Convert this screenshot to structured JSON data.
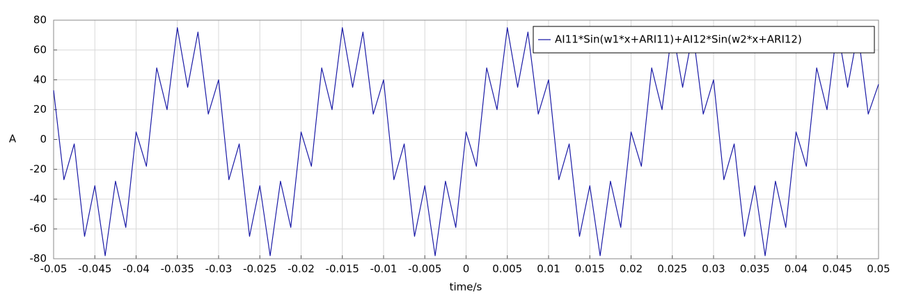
{
  "chart_data": {
    "type": "line",
    "xlabel": "time/s",
    "ylabel": "A",
    "x": [
      -0.05,
      -0.04875,
      -0.0475,
      -0.04625,
      -0.045,
      -0.04375,
      -0.0425,
      -0.04125,
      -0.04,
      -0.03875,
      -0.0375,
      -0.03625,
      -0.035,
      -0.03375,
      -0.0325,
      -0.03125,
      -0.03,
      -0.02875,
      -0.0275,
      -0.02625,
      -0.025,
      -0.02375,
      -0.0225,
      -0.02125,
      -0.02,
      -0.01875,
      -0.0175,
      -0.01625,
      -0.015,
      -0.01375,
      -0.0125,
      -0.01125,
      -0.01,
      -0.00875,
      -0.0075,
      -0.00625,
      -0.005,
      -0.00375,
      -0.0025,
      -0.00125,
      0,
      0.00125,
      0.0025,
      0.00375,
      0.005,
      0.00625,
      0.0075,
      0.00875,
      0.01,
      0.01125,
      0.0125,
      0.01375,
      0.015,
      0.01625,
      0.0175,
      0.01875,
      0.02,
      0.02125,
      0.0225,
      0.02375,
      0.025,
      0.02625,
      0.0275,
      0.02875,
      0.03,
      0.03125,
      0.0325,
      0.03375,
      0.035,
      0.03625,
      0.0375,
      0.03875,
      0.04,
      0.04125,
      0.0425,
      0.04375,
      0.045,
      0.04625,
      0.0475,
      0.04875,
      0.05
    ],
    "series": [
      {
        "name": "AI11*Sin(w1*x+ARI11)+AI12*Sin(w2*x+ARI12)",
        "color": "#1a1aa6",
        "values": [
          33,
          -27,
          -3,
          -65,
          -31,
          -78,
          -28,
          -59,
          5,
          -18,
          48,
          20,
          75,
          35,
          72,
          17,
          40,
          -27,
          -3,
          -65,
          -31,
          -78,
          -28,
          -59,
          5,
          -18,
          48,
          20,
          75,
          35,
          72,
          17,
          40,
          -27,
          -3,
          -65,
          -31,
          -78,
          -28,
          -59,
          5,
          -18,
          48,
          20,
          75,
          35,
          72,
          17,
          40,
          -27,
          -3,
          -65,
          -31,
          -78,
          -28,
          -59,
          5,
          -18,
          48,
          20,
          75,
          35,
          72,
          17,
          40,
          -27,
          -3,
          -65,
          -31,
          -78,
          -28,
          -59,
          5,
          -18,
          48,
          20,
          75,
          35,
          72,
          17,
          37
        ]
      }
    ],
    "xlim": [
      -0.05,
      0.05
    ],
    "xticks": [
      -0.05,
      -0.045,
      -0.04,
      -0.035,
      -0.03,
      -0.025,
      -0.02,
      -0.015,
      -0.01,
      -0.005,
      0,
      0.005,
      0.01,
      0.015,
      0.02,
      0.025,
      0.03,
      0.035,
      0.04,
      0.045,
      0.05
    ],
    "ylim": [
      -80,
      80
    ],
    "yticks": [
      -80,
      -60,
      -40,
      -20,
      0,
      20,
      40,
      60,
      80
    ],
    "grid": true,
    "legend": "upper right"
  }
}
